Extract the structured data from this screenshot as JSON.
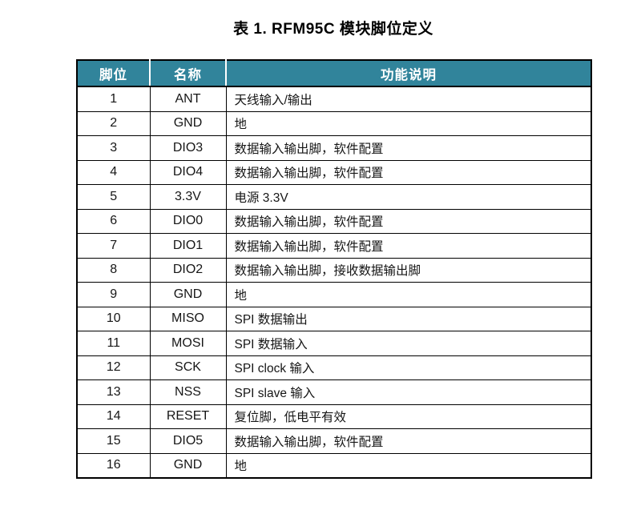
{
  "title": "表 1. RFM95C  模块脚位定义",
  "colors": {
    "header_bg": "#31849B",
    "header_text": "#FFFFFF",
    "border": "#000000",
    "body_text": "#161616",
    "page_bg": "#FFFFFF"
  },
  "table": {
    "headers": [
      "脚位",
      "名称",
      "功能说明"
    ],
    "rows": [
      {
        "pin": "1",
        "name": "ANT",
        "desc": "天线输入/输出"
      },
      {
        "pin": "2",
        "name": "GND",
        "desc": "地"
      },
      {
        "pin": "3",
        "name": "DIO3",
        "desc": "数据输入输出脚，软件配置"
      },
      {
        "pin": "4",
        "name": "DIO4",
        "desc": "数据输入输出脚，软件配置"
      },
      {
        "pin": "5",
        "name": "3.3V",
        "desc": "电源 3.3V"
      },
      {
        "pin": "6",
        "name": "DIO0",
        "desc": "数据输入输出脚，软件配置"
      },
      {
        "pin": "7",
        "name": "DIO1",
        "desc": "数据输入输出脚，软件配置"
      },
      {
        "pin": "8",
        "name": "DIO2",
        "desc": "数据输入输出脚，接收数据输出脚"
      },
      {
        "pin": "9",
        "name": "GND",
        "desc": "地"
      },
      {
        "pin": "10",
        "name": "MISO",
        "desc": "SPI 数据输出"
      },
      {
        "pin": "11",
        "name": "MOSI",
        "desc": "SPI 数据输入"
      },
      {
        "pin": "12",
        "name": "SCK",
        "desc": "SPI clock 输入"
      },
      {
        "pin": "13",
        "name": "NSS",
        "desc": "SPI slave 输入"
      },
      {
        "pin": "14",
        "name": "RESET",
        "desc": "复位脚，低电平有效"
      },
      {
        "pin": "15",
        "name": "DIO5",
        "desc": "数据输入输出脚，软件配置"
      },
      {
        "pin": "16",
        "name": "GND",
        "desc": "地"
      }
    ]
  }
}
